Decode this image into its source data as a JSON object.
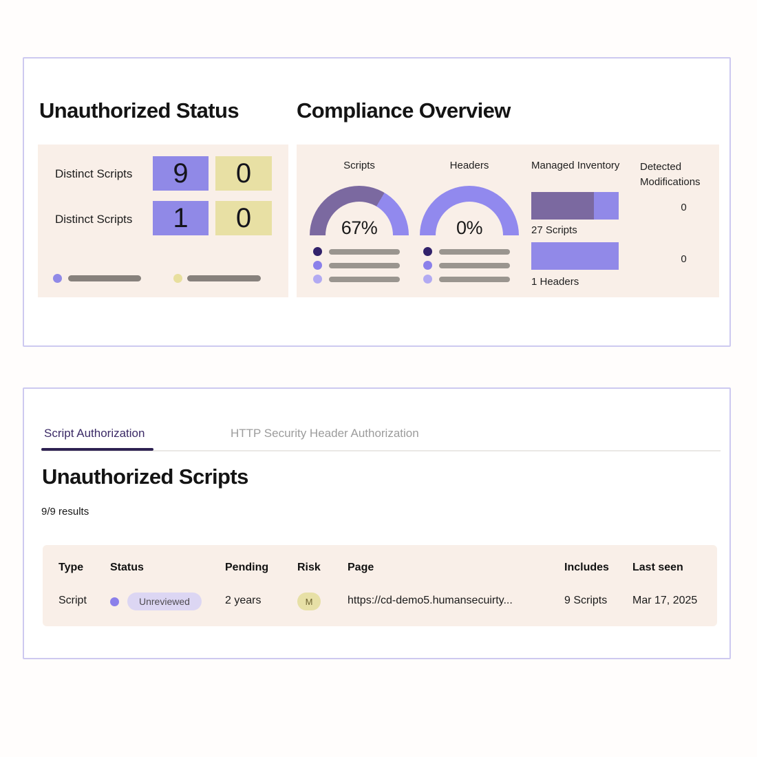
{
  "colors": {
    "accent_purple": "#9089e7",
    "accent_yellow": "#e8e0a4",
    "gauge_fill": "#7b69a0",
    "gauge_rest": "#9189ee",
    "legend_dot_dark": "#32226b",
    "legend_dot_mid": "#8b80ea",
    "legend_dot_light": "#b2aaf2",
    "panel_bg": "#f9efe8",
    "tab_active_text": "#3b2a66",
    "badge_unreviewed_bg": "#dcd6f3",
    "badge_risk_bg": "#e7e0a6",
    "card_border": "#cdc9f0"
  },
  "status_panel": {
    "title": "Unauthorized Status",
    "rows": [
      {
        "label": "Distinct Scripts",
        "unauthorized_count": "9",
        "authorized_count": "0"
      },
      {
        "label": "Distinct Scripts",
        "unauthorized_count": "1",
        "authorized_count": "0"
      }
    ]
  },
  "compliance_panel": {
    "title": "Compliance Overview",
    "gauges": [
      {
        "label": "Scripts",
        "percent": 67,
        "percent_label": "67%"
      },
      {
        "label": "Headers",
        "percent": 0,
        "percent_label": "0%"
      }
    ],
    "managed_inventory": {
      "title": "Managed Inventory",
      "bars": [
        {
          "label": "27 Scripts",
          "fill_percent": 72
        },
        {
          "label": "1 Headers",
          "fill_percent": 0
        }
      ]
    },
    "detected_modifications": {
      "title": "Detected Modifications",
      "values": [
        "0",
        "0"
      ]
    }
  },
  "authorization_card": {
    "tabs": [
      {
        "label": "Script Authorization"
      },
      {
        "label": "HTTP Security Header Authorization"
      }
    ],
    "heading": "Unauthorized Scripts",
    "results": "9/9 results",
    "table": {
      "headers": {
        "type": "Type",
        "status": "Status",
        "pending": "Pending",
        "risk": "Risk",
        "page": "Page",
        "includes": "Includes",
        "last_seen": "Last seen"
      },
      "rows": [
        {
          "type": "Script",
          "status": "Unreviewed",
          "pending": "2 years",
          "risk": "M",
          "page": "https://cd-demo5.humansecuirty...",
          "includes": "9 Scripts",
          "last_seen": "Mar 17, 2025"
        }
      ]
    }
  }
}
